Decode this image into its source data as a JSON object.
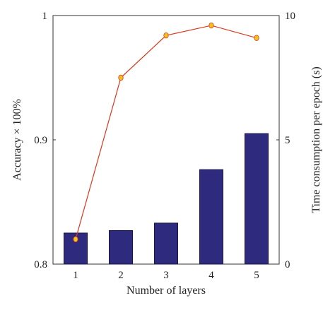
{
  "chart_data": {
    "type": "bar+line",
    "categories": [
      "1",
      "2",
      "3",
      "4",
      "5"
    ],
    "xlabel": "Number of layers",
    "y_left": {
      "label": "Accuracy × 100%",
      "lim": [
        0.8,
        1.0
      ],
      "ticks": [
        0.8,
        0.9,
        1.0
      ],
      "tick_labels": [
        "0.8",
        "0.9",
        "1"
      ]
    },
    "y_right": {
      "label": "Time consumption per epoch (s)",
      "lim": [
        0,
        10
      ],
      "ticks": [
        0,
        5,
        10
      ],
      "tick_labels": [
        "0",
        "5",
        "10"
      ]
    },
    "bars": {
      "axis": "left",
      "color": "#2e2a7e",
      "values": [
        0.825,
        0.827,
        0.833,
        0.876,
        0.905
      ]
    },
    "line": {
      "axis": "right",
      "color": "#d9381e",
      "marker_color": "#f2c21b",
      "values": [
        1.0,
        7.5,
        9.2,
        9.6,
        9.1
      ]
    },
    "grid": false,
    "legend": "none"
  }
}
